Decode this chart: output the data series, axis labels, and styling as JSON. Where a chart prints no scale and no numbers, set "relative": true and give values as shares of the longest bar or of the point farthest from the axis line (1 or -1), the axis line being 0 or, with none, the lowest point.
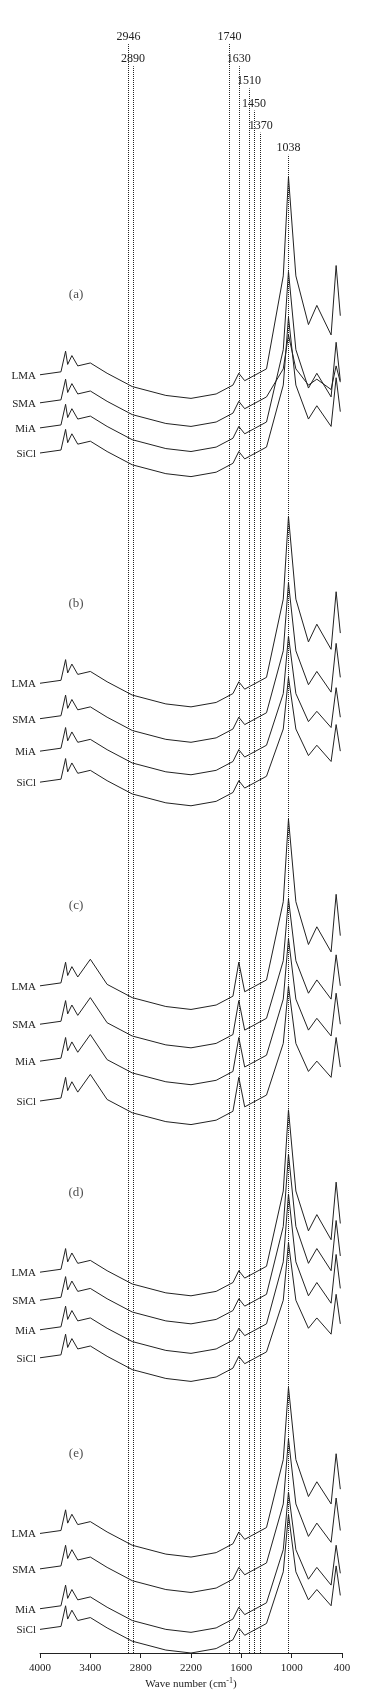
{
  "chart_data": {
    "type": "line",
    "relative": true,
    "xlabel": "Wave number (cm$^{-1}$)",
    "xlim": [
      4000,
      400
    ],
    "xticks": [
      4000,
      3400,
      2800,
      2200,
      1600,
      1000,
      400
    ],
    "grid": false,
    "x": [
      4000,
      3750,
      3695,
      3670,
      3620,
      3550,
      3400,
      3200,
      2900,
      2500,
      2200,
      1900,
      1700,
      1630,
      1560,
      1300,
      1100,
      1038,
      950,
      800,
      700,
      530,
      470,
      420
    ],
    "series": [
      {
        "name": "LMA",
        "color": "#222222",
        "values": [
          0.866,
          0.868,
          0.882,
          0.873,
          0.879,
          0.872,
          0.874,
          0.867,
          0.858,
          0.852,
          0.85,
          0.853,
          0.859,
          0.867,
          0.862,
          0.87,
          0.933,
          1.0,
          0.933,
          0.9,
          0.913,
          0.893,
          0.94,
          0.906
        ]
      },
      {
        "name": "SMA",
        "color": "#222222",
        "values": [
          0.847,
          0.849,
          0.863,
          0.854,
          0.86,
          0.853,
          0.855,
          0.848,
          0.839,
          0.833,
          0.831,
          0.834,
          0.84,
          0.848,
          0.843,
          0.851,
          0.87,
          0.893,
          0.87,
          0.859,
          0.863,
          0.856,
          0.872,
          0.861
        ]
      },
      {
        "name": "MiA",
        "color": "#222222",
        "values": [
          0.83,
          0.832,
          0.846,
          0.837,
          0.843,
          0.836,
          0.838,
          0.831,
          0.822,
          0.816,
          0.814,
          0.817,
          0.823,
          0.831,
          0.826,
          0.834,
          0.883,
          0.936,
          0.883,
          0.857,
          0.867,
          0.851,
          0.888,
          0.862
        ]
      },
      {
        "name": "SiCl",
        "color": "#222222",
        "values": [
          0.813,
          0.815,
          0.829,
          0.82,
          0.826,
          0.819,
          0.821,
          0.814,
          0.805,
          0.799,
          0.797,
          0.8,
          0.806,
          0.814,
          0.809,
          0.817,
          0.859,
          0.905,
          0.859,
          0.836,
          0.845,
          0.831,
          0.864,
          0.841
        ]
      },
      {
        "name": "LMA",
        "color": "#222222",
        "values": [
          0.657,
          0.659,
          0.673,
          0.664,
          0.67,
          0.663,
          0.665,
          0.658,
          0.649,
          0.643,
          0.641,
          0.644,
          0.65,
          0.658,
          0.653,
          0.661,
          0.714,
          0.77,
          0.714,
          0.685,
          0.697,
          0.68,
          0.719,
          0.691
        ]
      },
      {
        "name": "SMA",
        "color": "#222222",
        "values": [
          0.633,
          0.635,
          0.649,
          0.64,
          0.646,
          0.639,
          0.641,
          0.634,
          0.625,
          0.619,
          0.617,
          0.62,
          0.626,
          0.634,
          0.629,
          0.637,
          0.679,
          0.725,
          0.679,
          0.656,
          0.665,
          0.651,
          0.684,
          0.661
        ]
      },
      {
        "name": "MiA",
        "color": "#222222",
        "values": [
          0.611,
          0.613,
          0.627,
          0.618,
          0.624,
          0.617,
          0.619,
          0.612,
          0.603,
          0.597,
          0.595,
          0.598,
          0.604,
          0.612,
          0.607,
          0.615,
          0.65,
          0.689,
          0.65,
          0.631,
          0.638,
          0.627,
          0.654,
          0.634
        ]
      },
      {
        "name": "SiCl",
        "color": "#222222",
        "values": [
          0.59,
          0.592,
          0.606,
          0.597,
          0.603,
          0.596,
          0.598,
          0.591,
          0.582,
          0.576,
          0.574,
          0.577,
          0.583,
          0.591,
          0.586,
          0.594,
          0.626,
          0.661,
          0.626,
          0.608,
          0.615,
          0.604,
          0.629,
          0.611
        ]
      },
      {
        "name": "LMA",
        "color": "#222222",
        "values": [
          0.452,
          0.454,
          0.468,
          0.459,
          0.465,
          0.458,
          0.47,
          0.453,
          0.444,
          0.438,
          0.436,
          0.439,
          0.445,
          0.468,
          0.448,
          0.456,
          0.509,
          0.565,
          0.509,
          0.48,
          0.492,
          0.475,
          0.514,
          0.486
        ]
      },
      {
        "name": "SMA",
        "color": "#222222",
        "values": [
          0.426,
          0.428,
          0.442,
          0.433,
          0.439,
          0.432,
          0.444,
          0.427,
          0.418,
          0.412,
          0.41,
          0.413,
          0.419,
          0.442,
          0.422,
          0.43,
          0.469,
          0.511,
          0.469,
          0.447,
          0.456,
          0.443,
          0.473,
          0.452
        ]
      },
      {
        "name": "MiA",
        "color": "#222222",
        "values": [
          0.401,
          0.403,
          0.417,
          0.408,
          0.414,
          0.407,
          0.419,
          0.402,
          0.393,
          0.387,
          0.385,
          0.388,
          0.394,
          0.417,
          0.397,
          0.405,
          0.443,
          0.484,
          0.443,
          0.422,
          0.43,
          0.418,
          0.447,
          0.426
        ]
      },
      {
        "name": "SiCl",
        "color": "#222222",
        "values": [
          0.374,
          0.376,
          0.39,
          0.381,
          0.387,
          0.38,
          0.392,
          0.375,
          0.366,
          0.36,
          0.358,
          0.361,
          0.367,
          0.39,
          0.37,
          0.378,
          0.413,
          0.452,
          0.413,
          0.394,
          0.401,
          0.39,
          0.417,
          0.397
        ]
      },
      {
        "name": "LMA",
        "color": "#222222",
        "values": [
          0.258,
          0.26,
          0.274,
          0.265,
          0.271,
          0.264,
          0.266,
          0.259,
          0.25,
          0.244,
          0.242,
          0.245,
          0.251,
          0.259,
          0.254,
          0.262,
          0.313,
          0.368,
          0.313,
          0.286,
          0.297,
          0.28,
          0.319,
          0.291
        ]
      },
      {
        "name": "SMA",
        "color": "#222222",
        "values": [
          0.239,
          0.241,
          0.255,
          0.246,
          0.252,
          0.245,
          0.247,
          0.24,
          0.231,
          0.225,
          0.223,
          0.226,
          0.232,
          0.24,
          0.235,
          0.243,
          0.289,
          0.338,
          0.289,
          0.264,
          0.274,
          0.259,
          0.293,
          0.269
        ]
      },
      {
        "name": "MiA",
        "color": "#222222",
        "values": [
          0.219,
          0.221,
          0.235,
          0.226,
          0.232,
          0.225,
          0.227,
          0.22,
          0.211,
          0.205,
          0.203,
          0.206,
          0.212,
          0.22,
          0.215,
          0.223,
          0.265,
          0.311,
          0.265,
          0.242,
          0.251,
          0.237,
          0.27,
          0.247
        ]
      },
      {
        "name": "SiCl",
        "color": "#222222",
        "values": [
          0.2,
          0.202,
          0.216,
          0.207,
          0.213,
          0.206,
          0.208,
          0.201,
          0.192,
          0.186,
          0.184,
          0.187,
          0.193,
          0.201,
          0.196,
          0.204,
          0.239,
          0.278,
          0.239,
          0.22,
          0.227,
          0.216,
          0.243,
          0.223
        ]
      },
      {
        "name": "LMA",
        "color": "#222222",
        "values": [
          0.081,
          0.083,
          0.097,
          0.088,
          0.094,
          0.087,
          0.089,
          0.082,
          0.073,
          0.067,
          0.065,
          0.068,
          0.074,
          0.082,
          0.077,
          0.085,
          0.131,
          0.18,
          0.131,
          0.106,
          0.116,
          0.101,
          0.135,
          0.111
        ]
      },
      {
        "name": "SMA",
        "color": "#222222",
        "values": [
          0.057,
          0.059,
          0.073,
          0.064,
          0.07,
          0.063,
          0.065,
          0.058,
          0.049,
          0.043,
          0.041,
          0.044,
          0.05,
          0.058,
          0.053,
          0.061,
          0.101,
          0.145,
          0.101,
          0.079,
          0.088,
          0.075,
          0.105,
          0.083
        ]
      },
      {
        "name": "MiA",
        "color": "#222222",
        "values": [
          0.03,
          0.032,
          0.046,
          0.037,
          0.043,
          0.036,
          0.038,
          0.031,
          0.022,
          0.016,
          0.014,
          0.017,
          0.023,
          0.031,
          0.026,
          0.034,
          0.07,
          0.109,
          0.07,
          0.05,
          0.058,
          0.046,
          0.073,
          0.054
        ]
      },
      {
        "name": "SiCl",
        "color": "#222222",
        "values": [
          0.016,
          0.018,
          0.032,
          0.023,
          0.029,
          0.022,
          0.024,
          0.017,
          0.008,
          0.002,
          0.0,
          0.003,
          0.009,
          0.017,
          0.012,
          0.02,
          0.055,
          0.094,
          0.055,
          0.036,
          0.043,
          0.032,
          0.059,
          0.039
        ]
      }
    ],
    "ref_lines": [
      {
        "axis": "x",
        "value": 2946,
        "label": "2946",
        "line_style": "dotted",
        "color": "#222222"
      },
      {
        "axis": "x",
        "value": 2890,
        "label": "2890",
        "line_style": "dotted",
        "color": "#222222"
      },
      {
        "axis": "x",
        "value": 1740,
        "label": "1740",
        "line_style": "dotted",
        "color": "#222222"
      },
      {
        "axis": "x",
        "value": 1630,
        "label": "1630",
        "line_style": "dotted",
        "color": "#222222"
      },
      {
        "axis": "x",
        "value": 1510,
        "label": "1510",
        "line_style": "dotted",
        "color": "#222222"
      },
      {
        "axis": "x",
        "value": 1450,
        "label": "1450",
        "line_style": "dotted",
        "color": "#222222"
      },
      {
        "axis": "x",
        "value": 1370,
        "label": "1370",
        "line_style": "dotted",
        "color": "#222222"
      },
      {
        "axis": "x",
        "value": 1038,
        "label": "1038",
        "line_style": "dotted",
        "color": "#222222"
      }
    ],
    "annotations": [
      "(a)",
      "(b)",
      "(c)",
      "(d)",
      "(e)"
    ]
  }
}
